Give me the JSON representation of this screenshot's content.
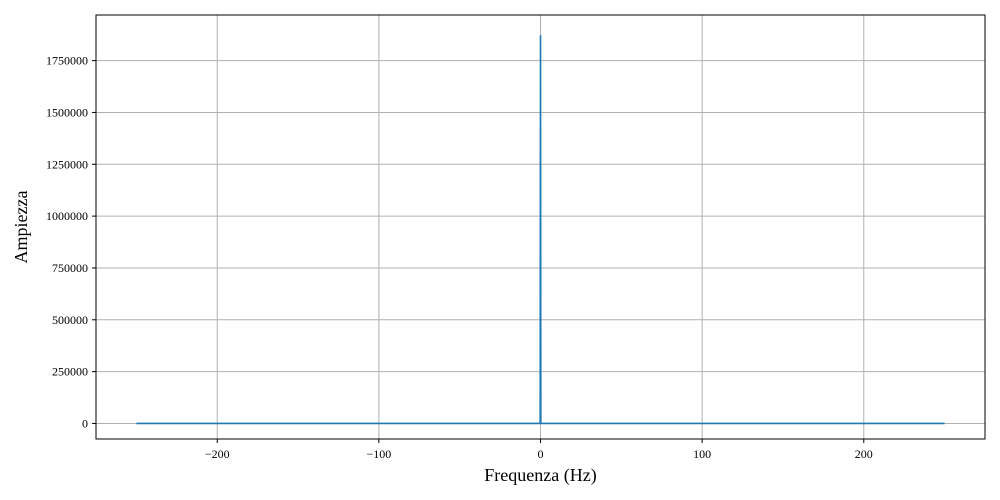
{
  "chart_data": {
    "type": "line",
    "title": "",
    "xlabel": "Frequenza (Hz)",
    "ylabel": "Ampiezza",
    "xlim": [
      -275,
      275
    ],
    "ylim": [
      -75000,
      1970000
    ],
    "grid": true,
    "x_ticks": [
      -200,
      -100,
      0,
      100,
      200
    ],
    "x_tick_labels": [
      "−200",
      "−100",
      "0",
      "100",
      "200"
    ],
    "y_ticks": [
      0,
      250000,
      500000,
      750000,
      1000000,
      1250000,
      1500000,
      1750000
    ],
    "y_tick_labels": [
      "0",
      "250000",
      "500000",
      "750000",
      "1000000",
      "1250000",
      "1500000",
      "1750000"
    ],
    "line_color": "#1f77b4",
    "series": [
      {
        "x": [
          -250,
          -0.5,
          -0.2,
          0,
          0.2,
          0.5,
          250
        ],
        "y": [
          0,
          0,
          2000,
          1870000,
          2000,
          0,
          0
        ]
      }
    ]
  }
}
